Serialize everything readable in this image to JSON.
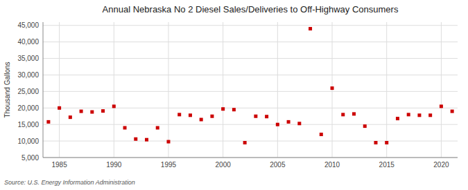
{
  "chart_data": {
    "type": "scatter",
    "title": "Annual Nebraska No 2 Diesel Sales/Deliveries to Off-Highway Consumers",
    "y_label": "Thousand Gallons",
    "annotations": [
      "Source: U.S. Energy Information Administration"
    ],
    "x": [
      1984,
      1985,
      1986,
      1987,
      1988,
      1989,
      1990,
      1991,
      1992,
      1993,
      1994,
      1995,
      1996,
      1997,
      1998,
      1999,
      2000,
      2001,
      2002,
      2003,
      2004,
      2005,
      2006,
      2007,
      2008,
      2009,
      2010,
      2011,
      2012,
      2013,
      2014,
      2015,
      2016,
      2017,
      2018,
      2019,
      2020,
      2021
    ],
    "values": [
      15800,
      20000,
      17200,
      19000,
      18800,
      19100,
      20500,
      14000,
      10600,
      10400,
      14000,
      9800,
      18000,
      17800,
      16500,
      17500,
      19700,
      19500,
      9500,
      17500,
      17400,
      15000,
      15800,
      15300,
      44000,
      12000,
      26000,
      18000,
      18200,
      14500,
      9500,
      9500,
      16800,
      18000,
      17800,
      17800,
      20500,
      19000
    ],
    "color": "#cc0000",
    "marker": "square",
    "xlim": [
      1983.5,
      2021.5
    ],
    "ylim": [
      5000,
      46000
    ],
    "xticks": [
      1985,
      1990,
      1995,
      2000,
      2005,
      2010,
      2015,
      2020
    ],
    "yticks": [
      {
        "value": 5000,
        "label": "5,000"
      },
      {
        "value": 10000,
        "label": "10,000"
      },
      {
        "value": 15000,
        "label": "15,000"
      },
      {
        "value": 20000,
        "label": "20,000"
      },
      {
        "value": 25000,
        "label": "25,000"
      },
      {
        "value": 30000,
        "label": "30,000"
      },
      {
        "value": 35000,
        "label": "35,000"
      },
      {
        "value": 40000,
        "label": "40,000"
      },
      {
        "value": 45000,
        "label": "45,000"
      }
    ],
    "grid": true
  }
}
